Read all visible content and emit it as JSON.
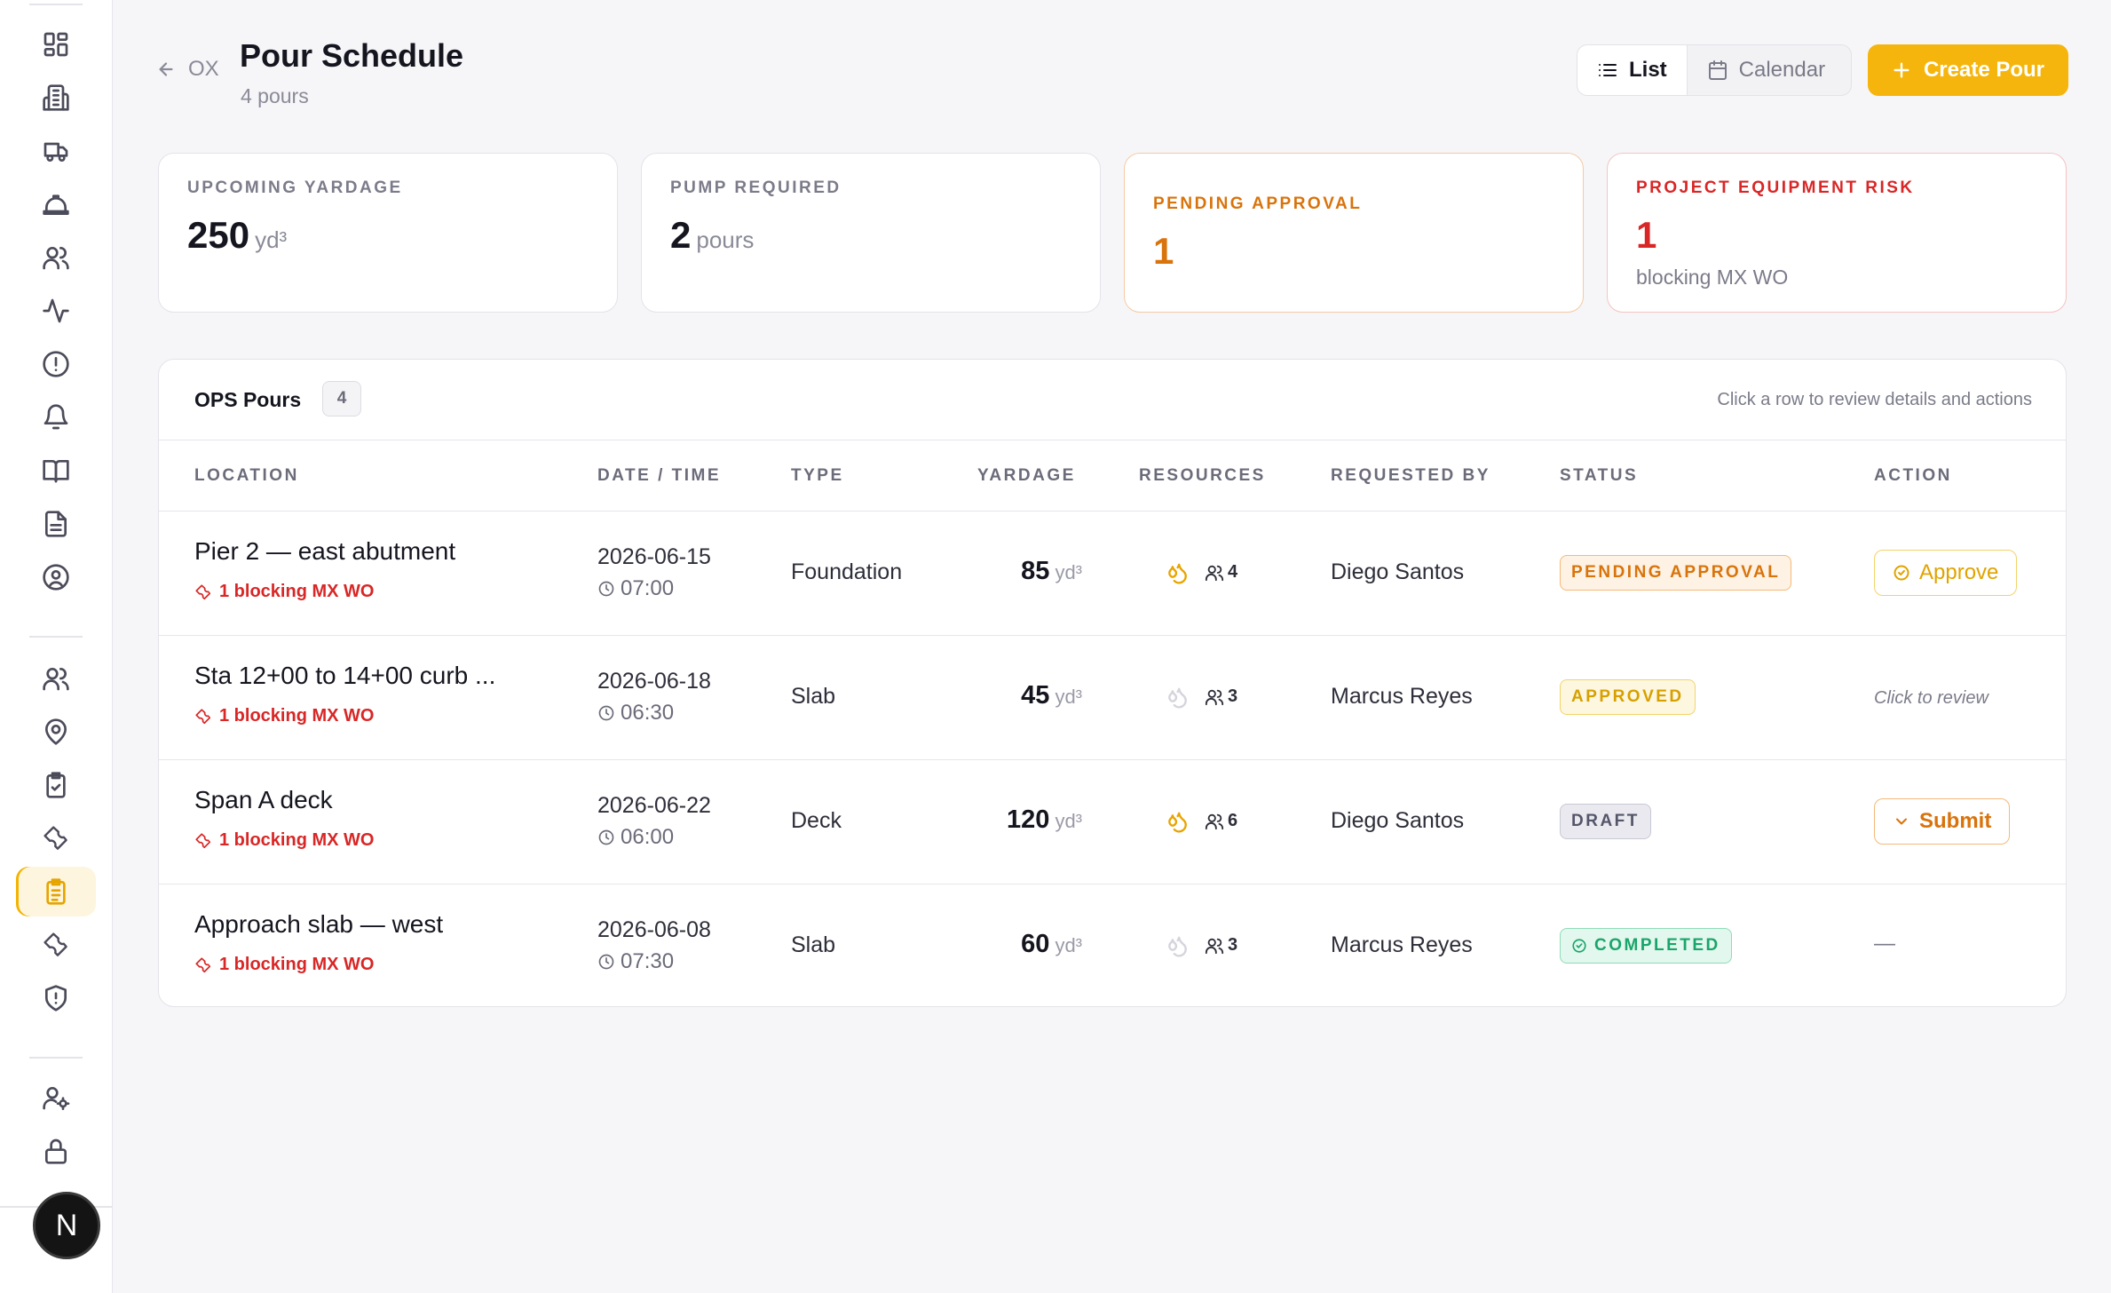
{
  "header": {
    "back_label": "OX",
    "title": "Pour Schedule",
    "subtitle": "4 pours",
    "view_list_label": "List",
    "view_calendar_label": "Calendar",
    "create_label": "Create Pour"
  },
  "stats": {
    "upcoming": {
      "label": "UPCOMING YARDAGE",
      "value": "250",
      "unit": "yd³"
    },
    "pump": {
      "label": "PUMP REQUIRED",
      "value": "2",
      "unit": "pours"
    },
    "pending": {
      "label": "PENDING APPROVAL",
      "value": "1"
    },
    "risk": {
      "label": "PROJECT EQUIPMENT RISK",
      "value": "1",
      "note": "blocking MX WO"
    }
  },
  "table": {
    "title": "OPS Pours",
    "count": "4",
    "hint": "Click a row to review details and actions",
    "columns": [
      "LOCATION",
      "DATE / TIME",
      "TYPE",
      "YARDAGE",
      "RESOURCES",
      "REQUESTED BY",
      "STATUS",
      "ACTION"
    ],
    "rows": [
      {
        "location": "Pier 2 — east abutment",
        "blocking": "1 blocking MX WO",
        "date": "2026-06-15",
        "time": "07:00",
        "type": "Foundation",
        "yardage": "85",
        "unit": "yd³",
        "pump": true,
        "crew": "4",
        "requested_by": "Diego Santos",
        "status": "PENDING APPROVAL",
        "action": "Approve"
      },
      {
        "location": "Sta 12+00 to 14+00 curb ...",
        "blocking": "1 blocking MX WO",
        "date": "2026-06-18",
        "time": "06:30",
        "type": "Slab",
        "yardage": "45",
        "unit": "yd³",
        "pump": false,
        "crew": "3",
        "requested_by": "Marcus Reyes",
        "status": "APPROVED",
        "action": "Click to review"
      },
      {
        "location": "Span A deck",
        "blocking": "1 blocking MX WO",
        "date": "2026-06-22",
        "time": "06:00",
        "type": "Deck",
        "yardage": "120",
        "unit": "yd³",
        "pump": true,
        "crew": "6",
        "requested_by": "Diego Santos",
        "status": "DRAFT",
        "action": "Submit"
      },
      {
        "location": "Approach slab — west",
        "blocking": "1 blocking MX WO",
        "date": "2026-06-08",
        "time": "07:30",
        "type": "Slab",
        "yardage": "60",
        "unit": "yd³",
        "pump": false,
        "crew": "3",
        "requested_by": "Marcus Reyes",
        "status": "COMPLETED",
        "action": "—"
      }
    ]
  },
  "user": {
    "initial": "N"
  },
  "colors": {
    "accent": "#f5b50c",
    "danger": "#d92626",
    "warning": "#d9730b",
    "success": "#1aa56a"
  }
}
